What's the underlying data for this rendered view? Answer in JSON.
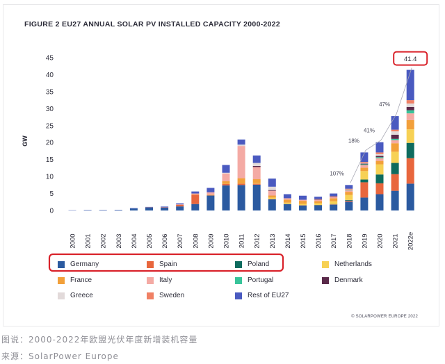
{
  "figure": {
    "title": "FIGURE 2 EU27 ANNUAL SOLAR PV INSTALLED CAPACITY 2000-2022",
    "credit": "© SOLARPOWER EUROPE 2022"
  },
  "captions": {
    "line1": "图说：2000-2022年欧盟光伏年度新增装机容量",
    "line2": "来源：SolarPower Europe"
  },
  "chart_data": {
    "type": "bar",
    "stacked": true,
    "title": "FIGURE 2 EU27 ANNUAL SOLAR PV INSTALLED CAPACITY 2000-2022",
    "ylabel": "GW",
    "xlabel": "",
    "ylim": [
      0,
      45
    ],
    "yticks": [
      0,
      5,
      10,
      15,
      20,
      25,
      30,
      35,
      40,
      45
    ],
    "grid": false,
    "legend_position": "bottom",
    "categories": [
      "2000",
      "2001",
      "2002",
      "2003",
      "2004",
      "2005",
      "2006",
      "2007",
      "2008",
      "2009",
      "2010",
      "2011",
      "2012",
      "2013",
      "2014",
      "2015",
      "2016",
      "2017",
      "2018",
      "2019",
      "2020",
      "2021",
      "2022e"
    ],
    "series": [
      {
        "name": "Germany",
        "color": "#2b5aa0",
        "values": [
          0.05,
          0.1,
          0.1,
          0.15,
          0.6,
          0.9,
          0.85,
          1.2,
          1.9,
          4.4,
          7.4,
          7.5,
          7.6,
          3.3,
          1.9,
          1.5,
          1.5,
          1.7,
          2.6,
          3.8,
          4.8,
          5.8,
          7.9
        ]
      },
      {
        "name": "Spain",
        "color": "#e8663d",
        "values": [
          0,
          0,
          0,
          0,
          0,
          0.05,
          0.1,
          0.5,
          2.7,
          0.05,
          0.4,
          0.4,
          0.3,
          0.1,
          0,
          0.05,
          0.05,
          0.1,
          0.3,
          4.5,
          3.2,
          4.9,
          7.5
        ]
      },
      {
        "name": "Poland",
        "color": "#0e6b5e",
        "values": [
          0,
          0,
          0,
          0,
          0,
          0,
          0,
          0,
          0,
          0,
          0,
          0,
          0,
          0,
          0,
          0,
          0.1,
          0.1,
          0.2,
          0.8,
          2.6,
          3.3,
          4.5
        ]
      },
      {
        "name": "Netherlands",
        "color": "#f7d154",
        "values": [
          0,
          0,
          0,
          0,
          0,
          0,
          0,
          0,
          0,
          0,
          0,
          0,
          0.2,
          0.4,
          0.4,
          0.4,
          0.5,
          0.8,
          1.5,
          2.5,
          3.0,
          3.3,
          4.0
        ]
      },
      {
        "name": "France",
        "color": "#f2a03a",
        "values": [
          0,
          0,
          0,
          0,
          0,
          0,
          0,
          0,
          0.1,
          0.2,
          0.8,
          1.6,
          1.1,
          0.6,
          0.9,
          0.9,
          0.6,
          0.9,
          0.9,
          1.0,
          1.0,
          2.5,
          2.7
        ]
      },
      {
        "name": "Italy",
        "color": "#f4aaa4",
        "values": [
          0,
          0,
          0,
          0,
          0,
          0,
          0,
          0.1,
          0.3,
          0.7,
          2.3,
          9.5,
          3.6,
          1.4,
          0.4,
          0.3,
          0.4,
          0.4,
          0.4,
          0.8,
          0.8,
          0.9,
          2.0
        ]
      },
      {
        "name": "Portugal",
        "color": "#38c49a",
        "values": [
          0,
          0,
          0,
          0,
          0,
          0,
          0,
          0,
          0,
          0,
          0,
          0,
          0,
          0,
          0,
          0,
          0,
          0,
          0.1,
          0.2,
          0.3,
          0.4,
          0.9
        ]
      },
      {
        "name": "Denmark",
        "color": "#5a2a4a",
        "values": [
          0,
          0,
          0,
          0,
          0,
          0,
          0,
          0,
          0,
          0,
          0,
          0,
          0.3,
          0.2,
          0,
          0,
          0.1,
          0.1,
          0.1,
          0.2,
          0.4,
          1.2,
          1.0
        ]
      },
      {
        "name": "Greece",
        "color": "#e2dada",
        "values": [
          0,
          0,
          0,
          0,
          0,
          0,
          0,
          0,
          0,
          0,
          0.2,
          0.4,
          0.9,
          1.0,
          0,
          0,
          0,
          0,
          0.1,
          0.2,
          0.5,
          1.0,
          1.0
        ]
      },
      {
        "name": "Sweden",
        "color": "#f08064",
        "values": [
          0,
          0,
          0,
          0,
          0,
          0,
          0,
          0,
          0,
          0,
          0,
          0,
          0,
          0,
          0,
          0,
          0.1,
          0.1,
          0.2,
          0.3,
          0.5,
          0.5,
          1.0
        ]
      },
      {
        "name": "Rest of EU27",
        "color": "#4a5ac0",
        "values": [
          0.05,
          0.05,
          0.05,
          0.05,
          0.1,
          0.1,
          0.2,
          0.3,
          0.6,
          1.3,
          2.3,
          1.5,
          2.2,
          2.4,
          1.2,
          1.2,
          0.7,
          0.8,
          1.1,
          2.8,
          3.0,
          4.0,
          8.9
        ]
      }
    ],
    "annotations": [
      {
        "category": "2018",
        "text": "107%"
      },
      {
        "category": "2019",
        "text": "18%"
      },
      {
        "category": "2020",
        "text": "41%"
      },
      {
        "category": "2021",
        "text": "47%"
      },
      {
        "category": "2022e",
        "text": "41.4",
        "boxed": true
      }
    ]
  }
}
